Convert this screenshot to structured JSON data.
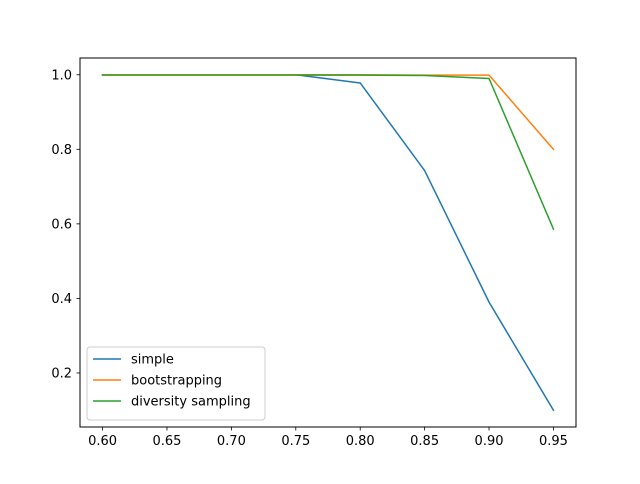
{
  "chart_data": {
    "type": "line",
    "title": "",
    "xlabel": "",
    "ylabel": "",
    "x": [
      0.6,
      0.65,
      0.7,
      0.75,
      0.8,
      0.85,
      0.9,
      0.95
    ],
    "xlim": [
      0.5825,
      0.9675
    ],
    "ylim": [
      0.055,
      1.045
    ],
    "xticks": [
      0.6,
      0.65,
      0.7,
      0.75,
      0.8,
      0.85,
      0.9,
      0.95
    ],
    "xtick_labels": [
      "0.60",
      "0.65",
      "0.70",
      "0.75",
      "0.80",
      "0.85",
      "0.90",
      "0.95"
    ],
    "yticks": [
      0.2,
      0.4,
      0.6,
      0.8,
      1.0
    ],
    "ytick_labels": [
      "0.2",
      "0.4",
      "0.6",
      "0.8",
      "1.0"
    ],
    "grid": false,
    "legend_position": "lower-left",
    "series": [
      {
        "name": "simple",
        "color": "#1f77b4",
        "values": [
          1.0,
          1.0,
          1.0,
          1.0,
          0.978,
          0.743,
          0.39,
          0.1
        ]
      },
      {
        "name": "bootstrapping",
        "color": "#ff7f0e",
        "values": [
          1.0,
          1.0,
          1.0,
          1.0,
          1.0,
          0.999,
          0.999,
          0.8
        ]
      },
      {
        "name": "diversity sampling",
        "color": "#2ca02c",
        "values": [
          0.999,
          0.999,
          0.999,
          0.999,
          0.999,
          0.998,
          0.99,
          0.586
        ]
      }
    ]
  }
}
